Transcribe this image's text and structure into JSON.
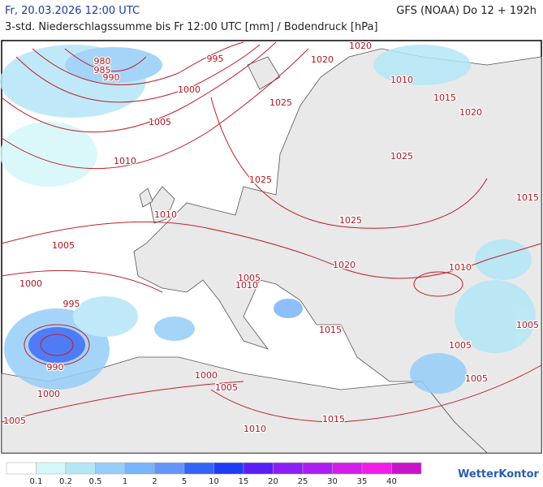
{
  "header": {
    "valid_time": "Fr, 20.03.2026 12:00 UTC",
    "model_run": "GFS (NOAA) Do 12 + 192h",
    "subtitle": "3-std. Niederschlagssumme bis Fr 12:00 UTC [mm] / Bodendruck [hPa]"
  },
  "isobar_labels": [
    "980",
    "985",
    "990",
    "995",
    "1000",
    "1005",
    "1010",
    "1020",
    "1020",
    "1010",
    "1025",
    "1015",
    "1020",
    "1025",
    "1025",
    "1015",
    "1010",
    "1025",
    "1005",
    "1020",
    "1010",
    "1000",
    "1005",
    "1010",
    "995",
    "1005",
    "1015",
    "1005",
    "990",
    "1000",
    "1005",
    "1005",
    "1000",
    "1005",
    "1015",
    "1010"
  ],
  "legend": {
    "labels": [
      "0.1",
      "0.2",
      "0.5",
      "1",
      "2",
      "5",
      "10",
      "15",
      "20",
      "25",
      "30",
      "35",
      "40"
    ],
    "colors": [
      "#ffffff",
      "#d4f7f9",
      "#b4e6f7",
      "#96cdf9",
      "#78b4fa",
      "#6496f9",
      "#3264f5",
      "#1e3cf5",
      "#5a1ef5",
      "#8c1ef5",
      "#aa1ef0",
      "#d21ee6",
      "#f01ee6",
      "#c814c8"
    ]
  },
  "footer": {
    "logo": "WetterKontor"
  }
}
